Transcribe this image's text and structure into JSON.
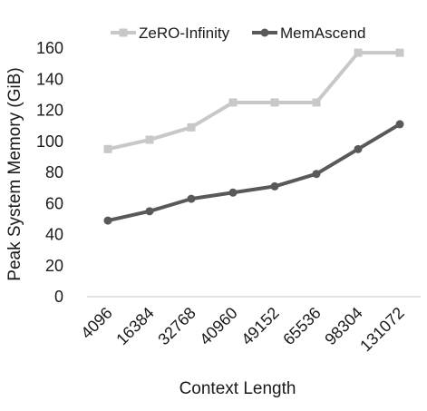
{
  "chart_data": {
    "type": "line",
    "title": "",
    "xlabel": "Context Length",
    "ylabel": "Peak System Memory (GiB)",
    "categories": [
      "4096",
      "16384",
      "32768",
      "40960",
      "49152",
      "65536",
      "98304",
      "131072"
    ],
    "ylim": [
      0,
      160
    ],
    "yticks": [
      "0",
      "20",
      "40",
      "60",
      "80",
      "100",
      "120",
      "140",
      "160"
    ],
    "grid": false,
    "legend_position": "top",
    "series": [
      {
        "name": "ZeRO-Infinity",
        "color": "#c8c8c8",
        "marker": "square",
        "values": [
          95,
          101,
          109,
          125,
          125,
          125,
          157,
          157
        ]
      },
      {
        "name": "MemAscend",
        "color": "#595959",
        "marker": "circle",
        "values": [
          49,
          55,
          63,
          67,
          71,
          79,
          95,
          111
        ]
      }
    ]
  }
}
